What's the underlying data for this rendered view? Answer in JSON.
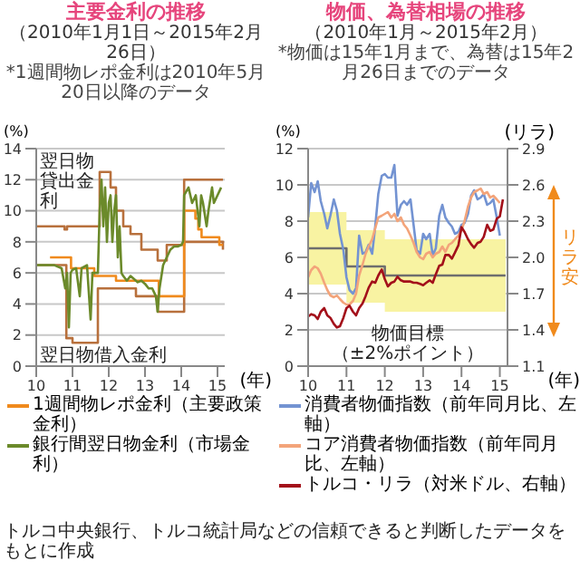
{
  "chart_data": [
    {
      "type": "line",
      "title": "主要金利の推移",
      "subtitle": "（2010年1月1日～2015年2月26日）",
      "ylabel": "(%)",
      "xlabel": "(年)",
      "annotations": [
        "*1週間物レポ金利は2010年5月20日以降のデータ",
        "翌日物貸出金利",
        "翌日物借入金利"
      ],
      "xlim": [
        10,
        15.2
      ],
      "xticks": [
        10,
        11,
        12,
        13,
        14,
        15
      ],
      "ylim": [
        0,
        14
      ],
      "yticks": [
        0,
        2,
        4,
        6,
        8,
        10,
        12,
        14
      ],
      "grid": "y",
      "legend": "bottom",
      "series": [
        {
          "type": "step",
          "color": "#b8703c",
          "x": [
            10,
            10.78,
            10.85,
            11.75,
            12.05,
            12.2,
            12.4,
            12.6,
            12.9,
            13.35,
            13.6,
            14.08,
            15.15
          ],
          "values": [
            9,
            8.8,
            9,
            12.5,
            11.5,
            10,
            9,
            8.5,
            7.5,
            6.8,
            7.8,
            12,
            12
          ]
        },
        {
          "type": "step",
          "color": "#b8703c",
          "x": [
            10,
            10.83,
            11.0,
            11.7,
            12.75,
            13.35,
            14.08,
            15.15
          ],
          "values": [
            6.5,
            1.8,
            1.5,
            5,
            4.5,
            3.5,
            8,
            7.5
          ]
        },
        {
          "name": "1週間物レポ金利（主要政策金利）",
          "type": "step",
          "color": "#f08a1c",
          "x": [
            10.38,
            10.96,
            11.6,
            12.2,
            13.38,
            14.08,
            14.39,
            14.47,
            14.56,
            15.05,
            15.15
          ],
          "values": [
            7,
            6.3,
            5.8,
            5.5,
            4.5,
            10,
            9.5,
            8.8,
            8.3,
            7.8,
            7.8
          ]
        },
        {
          "name": "銀行間翌日物金利（市場金利）",
          "type": "line",
          "color": "#6b8a2a",
          "x": [
            10.0,
            10.5,
            10.7,
            10.8,
            10.85,
            10.9,
            10.95,
            11.0,
            11.1,
            11.2,
            11.25,
            11.4,
            11.5,
            11.55,
            11.7,
            11.75,
            11.8,
            11.85,
            11.9,
            11.95,
            12.0,
            12.05,
            12.1,
            12.15,
            12.2,
            12.25,
            12.3,
            12.35,
            12.4,
            12.5,
            12.6,
            12.7,
            12.8,
            12.9,
            13.0,
            13.1,
            13.2,
            13.3,
            13.35,
            13.4,
            13.5,
            13.6,
            13.7,
            13.8,
            13.9,
            14.0,
            14.05,
            14.08,
            14.2,
            14.3,
            14.4,
            14.5,
            14.55,
            14.6,
            14.7,
            14.75,
            14.85,
            14.9,
            15.0,
            15.1
          ],
          "values": [
            6.5,
            6.5,
            6.3,
            5,
            6,
            2.5,
            6,
            6.2,
            6.3,
            4.5,
            6.3,
            6.5,
            3,
            6,
            6,
            10,
            12,
            9,
            11.5,
            8,
            10.5,
            11,
            8,
            10,
            11,
            7,
            9,
            6,
            5.8,
            5.5,
            5.8,
            5.6,
            5.4,
            5.5,
            5.3,
            5,
            5,
            4.5,
            3.5,
            5,
            6.5,
            7,
            7.5,
            7.7,
            7.7,
            7.8,
            8,
            11,
            11.5,
            10.5,
            11,
            9,
            11,
            10.5,
            9,
            10,
            11.5,
            10.5,
            11,
            11.5
          ]
        }
      ]
    },
    {
      "type": "line",
      "title": "物価、為替相場の推移",
      "subtitle": "（2010年1月～2015年2月）",
      "ylabel": "(%)",
      "y2label": "(リラ)",
      "xlabel": "(年)",
      "annotations": [
        "*物価は15年1月まで、為替は15年2月26日までのデータ",
        "物価目標（±2%ポイント）",
        "リラ安"
      ],
      "xlim": [
        10,
        15.2
      ],
      "xticks": [
        10,
        11,
        12,
        13,
        14,
        15
      ],
      "ylim": [
        0,
        12
      ],
      "yticks": [
        0,
        2,
        4,
        6,
        8,
        10,
        12
      ],
      "y2lim": [
        1.1,
        2.9
      ],
      "y2ticks": [
        1.1,
        1.4,
        1.7,
        {
          "value": 2,
          "label": "2.0"
        },
        2.3,
        2.6,
        2.9
      ],
      "grid": "y",
      "legend": "bottom",
      "x": [
        10,
        10.08,
        10.17,
        10.25,
        10.33,
        10.42,
        10.5,
        10.58,
        10.67,
        10.75,
        10.83,
        10.92,
        11,
        11.08,
        11.17,
        11.25,
        11.33,
        11.42,
        11.5,
        11.58,
        11.67,
        11.75,
        11.83,
        11.92,
        12,
        12.08,
        12.17,
        12.25,
        12.33,
        12.42,
        12.5,
        12.58,
        12.67,
        12.75,
        12.83,
        12.92,
        13,
        13.08,
        13.17,
        13.25,
        13.33,
        13.42,
        13.5,
        13.58,
        13.67,
        13.75,
        13.83,
        13.92,
        14,
        14.08,
        14.17,
        14.25,
        14.33,
        14.42,
        14.5,
        14.58,
        14.67,
        14.75,
        14.83,
        14.92,
        15,
        15.08
      ],
      "series": [
        {
          "type": "step",
          "color": "#6e6e6e",
          "x": [
            10,
            11,
            12,
            15.15
          ],
          "values": [
            6.5,
            5.5,
            5,
            5
          ],
          "lower": [
            4.5,
            3.5,
            3,
            3
          ],
          "upper": [
            8.5,
            7.5,
            7,
            7
          ]
        },
        {
          "name": "消費者物価指数（前年同月比、左軸）",
          "color": "#7393d2",
          "values": [
            8.2,
            10.1,
            9.6,
            10.2,
            9.1,
            8.4,
            7.6,
            8.3,
            9.2,
            8.6,
            7.3,
            6.4,
            4.9,
            4.2,
            4.0,
            4.3,
            7.2,
            6.2,
            6.3,
            6.7,
            6.2,
            7.7,
            9.5,
            10.5,
            10.6,
            10.4,
            10.4,
            11.1,
            8.3,
            8.9,
            9.1,
            8.9,
            9.2,
            7.8,
            6.4,
            6.2,
            7.3,
            7.0,
            7.3,
            6.1,
            6.5,
            8.3,
            8.9,
            8.2,
            7.9,
            7.7,
            7.3,
            7.4,
            7.8,
            7.9,
            8.4,
            9.4,
            9.7,
            9.2,
            9.3,
            9.5,
            8.9,
            9.0,
            9.2,
            8.2,
            7.2,
            null
          ]
        },
        {
          "name": "コア消費者物価指数（前年同月比、左軸）",
          "color": "#f3a47a",
          "values": [
            4.9,
            5.3,
            5.5,
            5.4,
            5.1,
            4.6,
            4.2,
            3.9,
            3.8,
            3.9,
            3.7,
            3.5,
            3.4,
            3.4,
            3.6,
            4.0,
            5.0,
            5.6,
            6.2,
            6.6,
            7.0,
            7.6,
            8.2,
            8.3,
            8.4,
            8.5,
            8.2,
            8.4,
            8.0,
            8.2,
            7.8,
            7.6,
            7.2,
            6.8,
            6.3,
            6.0,
            5.9,
            6.2,
            6.3,
            6.0,
            6.2,
            6.3,
            6.6,
            6.3,
            6.7,
            6.8,
            7.0,
            7.2,
            7.5,
            8.0,
            8.8,
            9.3,
            9.6,
            9.7,
            9.8,
            9.5,
            9.6,
            9.3,
            9.4,
            9.2,
            9.0,
            null
          ]
        },
        {
          "name": "トルコ・リラ（対米ドル、右軸）",
          "color": "#a3101a",
          "axis": "y2",
          "values": [
            1.51,
            1.53,
            1.52,
            1.49,
            1.55,
            1.58,
            1.52,
            1.5,
            1.45,
            1.42,
            1.43,
            1.5,
            1.58,
            1.6,
            1.55,
            1.52,
            1.58,
            1.62,
            1.68,
            1.75,
            1.8,
            1.79,
            1.85,
            1.9,
            1.82,
            1.76,
            1.79,
            1.8,
            1.84,
            1.81,
            1.8,
            1.8,
            1.8,
            1.79,
            1.79,
            1.78,
            1.77,
            1.79,
            1.81,
            1.79,
            1.86,
            1.93,
            1.94,
            2.02,
            2.02,
            1.99,
            2.04,
            2.1,
            2.25,
            2.21,
            2.15,
            2.11,
            2.08,
            2.12,
            2.13,
            2.17,
            2.27,
            2.22,
            2.23,
            2.32,
            2.34,
            2.48
          ]
        }
      ]
    },
    {
      "type": "other",
      "annotations": [
        "トルコ中央銀行、トルコ統計局などの信頼できると判断したデータをもとに作成"
      ]
    }
  ]
}
